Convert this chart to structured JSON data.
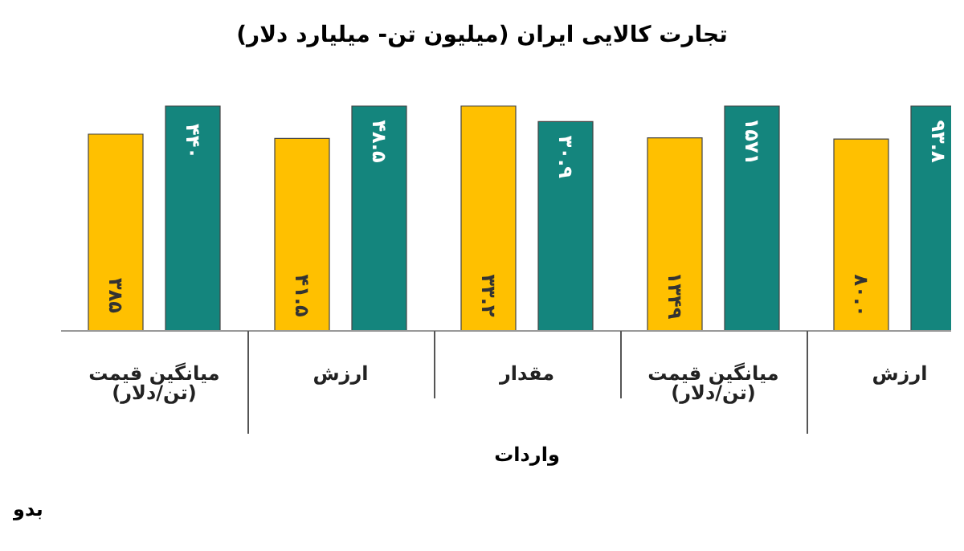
{
  "chart_data": [
    {
      "type": "bar",
      "categories": [
        "میانگین قیمت (تن/دلار)"
      ],
      "annotations": [
        "بدو"
      ],
      "series": [
        {
          "color": "#ffc000",
          "values": [
            385
          ],
          "value_labels": [
            "۳۸۵"
          ]
        },
        {
          "color": "#14857d",
          "values": [
            440
          ],
          "value_labels": [
            "۴۴۰"
          ]
        }
      ]
    },
    {
      "type": "bar",
      "categories": [
        "ارزش"
      ],
      "series": [
        {
          "color": "#ffc000",
          "values": [
            41.5
          ],
          "value_labels": [
            "۴۱.۵"
          ]
        },
        {
          "color": "#14857d",
          "values": [
            48.5
          ],
          "value_labels": [
            "۴۸.۵"
          ]
        }
      ]
    },
    {
      "type": "bar",
      "title": "تجارت کالایی ایران (میلیون تن- میلیارد دلار)",
      "categories": [
        "مقدار"
      ],
      "annotations": [
        "واردات"
      ],
      "series": [
        {
          "color": "#ffc000",
          "values": [
            33.2
          ],
          "value_labels": [
            "۳۳.۲"
          ]
        },
        {
          "color": "#14857d",
          "values": [
            30.9
          ],
          "value_labels": [
            "۳۰.۹"
          ]
        }
      ]
    },
    {
      "type": "bar",
      "categories": [
        "میانگین قیمت (تن/دلار)"
      ],
      "series": [
        {
          "color": "#ffc000",
          "values": [
            1349
          ],
          "value_labels": [
            "۱۳۴۹"
          ]
        },
        {
          "color": "#14857d",
          "values": [
            1571
          ],
          "value_labels": [
            "۱۵۷۱"
          ]
        }
      ]
    },
    {
      "type": "bar",
      "categories": [
        "ارزش"
      ],
      "series": [
        {
          "color": "#ffc000",
          "values": [
            80.0
          ],
          "value_labels": [
            "۸۰.۰"
          ]
        },
        {
          "color": "#14857d",
          "values": [
            93.8
          ],
          "value_labels": [
            "۹۳.۸"
          ]
        }
      ]
    }
  ]
}
